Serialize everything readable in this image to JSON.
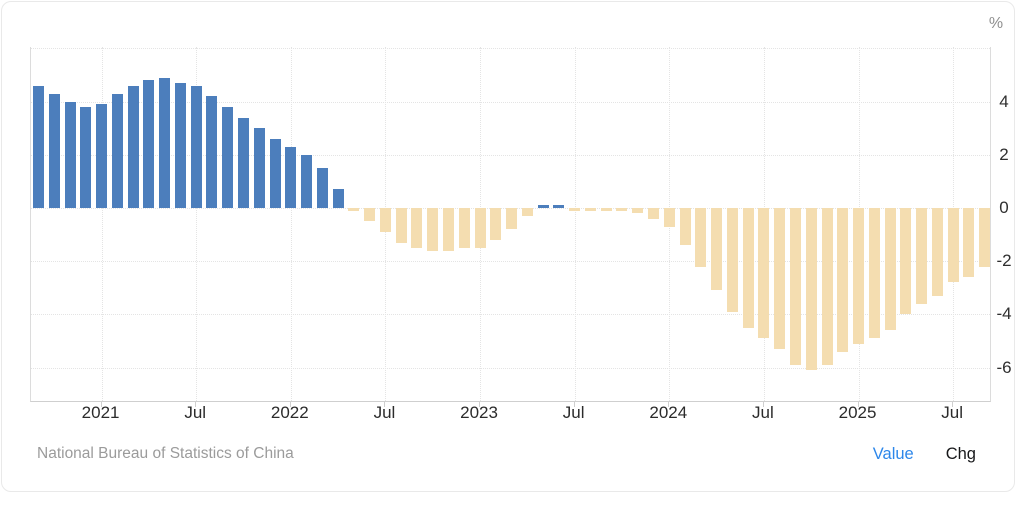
{
  "footer": {
    "source": "National Bureau of Statistics of China",
    "value_label": "Value",
    "chg_label": "Chg"
  },
  "colors": {
    "bar_positive": "#4c7ebc",
    "bar_negative": "#f4ddb0",
    "grid": "#e4e4e4",
    "axis_border": "#dcdcdc",
    "tick_text": "#2f2f2f",
    "muted_text": "#9b9b9b",
    "link_active": "#2d87ea",
    "link_inactive": "#17181a",
    "card_border": "#e9e9e9"
  },
  "chart_data": {
    "type": "bar",
    "title": "",
    "xlabel": "",
    "ylabel": "",
    "months": [
      "2020-09",
      "2020-10",
      "2020-11",
      "2020-12",
      "2021-01",
      "2021-02",
      "2021-03",
      "2021-04",
      "2021-05",
      "2021-06",
      "2021-07",
      "2021-08",
      "2021-09",
      "2021-10",
      "2021-11",
      "2021-12",
      "2022-01",
      "2022-02",
      "2022-03",
      "2022-04",
      "2022-05",
      "2022-06",
      "2022-07",
      "2022-08",
      "2022-09",
      "2022-10",
      "2022-11",
      "2022-12",
      "2023-01",
      "2023-02",
      "2023-03",
      "2023-04",
      "2023-05",
      "2023-06",
      "2023-07",
      "2023-08",
      "2023-09",
      "2023-10",
      "2023-11",
      "2023-12",
      "2024-01",
      "2024-02",
      "2024-03",
      "2024-04",
      "2024-05",
      "2024-06",
      "2024-07",
      "2024-08",
      "2024-09",
      "2024-10",
      "2024-11",
      "2024-12",
      "2025-01",
      "2025-02",
      "2025-03",
      "2025-04",
      "2025-05",
      "2025-06",
      "2025-07",
      "2025-08",
      "2025-09"
    ],
    "values": [
      4.6,
      4.3,
      4.0,
      3.8,
      3.9,
      4.3,
      4.6,
      4.8,
      4.9,
      4.7,
      4.6,
      4.2,
      3.8,
      3.4,
      3.0,
      2.6,
      2.3,
      2.0,
      1.5,
      0.7,
      -0.1,
      -0.5,
      -0.9,
      -1.3,
      -1.5,
      -1.6,
      -1.6,
      -1.5,
      -1.5,
      -1.2,
      -0.8,
      -0.3,
      0.1,
      0.1,
      -0.1,
      -0.1,
      -0.1,
      -0.1,
      -0.2,
      -0.4,
      -0.7,
      -1.4,
      -2.2,
      -3.1,
      -3.9,
      -4.5,
      -4.9,
      -5.3,
      -5.9,
      -6.1,
      -5.9,
      -5.4,
      -5.1,
      -4.9,
      -4.6,
      -4.0,
      -3.6,
      -3.3,
      -2.8,
      -2.6,
      -2.2
    ],
    "x_ticks": [
      {
        "index": 4,
        "label": "2021"
      },
      {
        "index": 10,
        "label": "Jul"
      },
      {
        "index": 16,
        "label": "2022"
      },
      {
        "index": 22,
        "label": "Jul"
      },
      {
        "index": 28,
        "label": "2023"
      },
      {
        "index": 34,
        "label": "Jul"
      },
      {
        "index": 40,
        "label": "2024"
      },
      {
        "index": 46,
        "label": "Jul"
      },
      {
        "index": 52,
        "label": "2025"
      },
      {
        "index": 58,
        "label": "Jul"
      }
    ],
    "y_axis": {
      "unit": "%",
      "ticks": [
        4,
        2,
        0,
        -2,
        -4,
        -6
      ],
      "ymax": 6.0,
      "ymin": -7.26,
      "grid": "dotted"
    },
    "legend_position": "none"
  }
}
